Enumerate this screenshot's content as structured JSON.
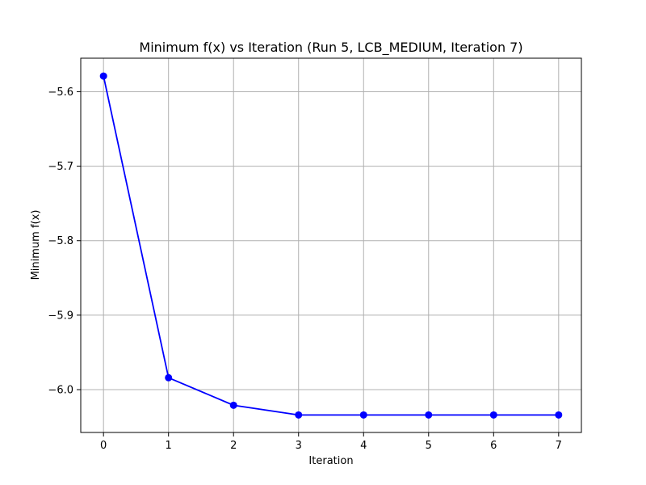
{
  "chart_data": {
    "type": "line",
    "title": "Minimum f(x) vs Iteration (Run 5, LCB_MEDIUM, Iteration 7)",
    "xlabel": "Iteration",
    "ylabel": "Minimum f(x)",
    "x": [
      0,
      1,
      2,
      3,
      4,
      5,
      6,
      7
    ],
    "series": [
      {
        "values": [
          -5.579,
          -5.984,
          -6.021,
          -6.034,
          -6.034,
          -6.034,
          -6.034,
          -6.034
        ]
      }
    ],
    "xlim": [
      -0.35,
      7.35
    ],
    "ylim": [
      -6.0575,
      -5.555
    ],
    "x_ticks": [
      0,
      1,
      2,
      3,
      4,
      5,
      6,
      7
    ],
    "x_tick_labels": [
      "0",
      "1",
      "2",
      "3",
      "4",
      "5",
      "6",
      "7"
    ],
    "y_ticks": [
      -5.6,
      -5.7,
      -5.8,
      -5.9,
      -6.0
    ],
    "y_tick_labels": [
      "−5.6",
      "−5.7",
      "−5.8",
      "−5.9",
      "−6.0"
    ],
    "grid": true,
    "line_color": "#0000ff",
    "marker": "circle",
    "grid_color": "#b0b0b0"
  }
}
